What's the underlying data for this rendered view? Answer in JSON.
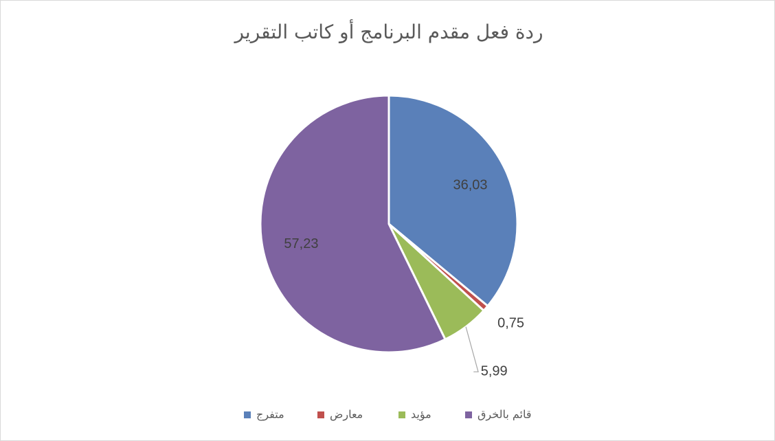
{
  "chart_data": {
    "type": "pie",
    "title": "ردة فعل مقدم البرنامج أو كاتب التقرير",
    "categories": [
      "متفرج",
      "معارض",
      "مؤيد",
      "قائم بالخرق"
    ],
    "values": [
      36.03,
      0.75,
      5.99,
      57.23
    ],
    "value_labels": [
      "36,03",
      "0,75",
      "5,99",
      "57,23"
    ],
    "colors": [
      "#5a80b9",
      "#c0504d",
      "#9bbb59",
      "#7e63a0"
    ],
    "legend": "bottom"
  }
}
